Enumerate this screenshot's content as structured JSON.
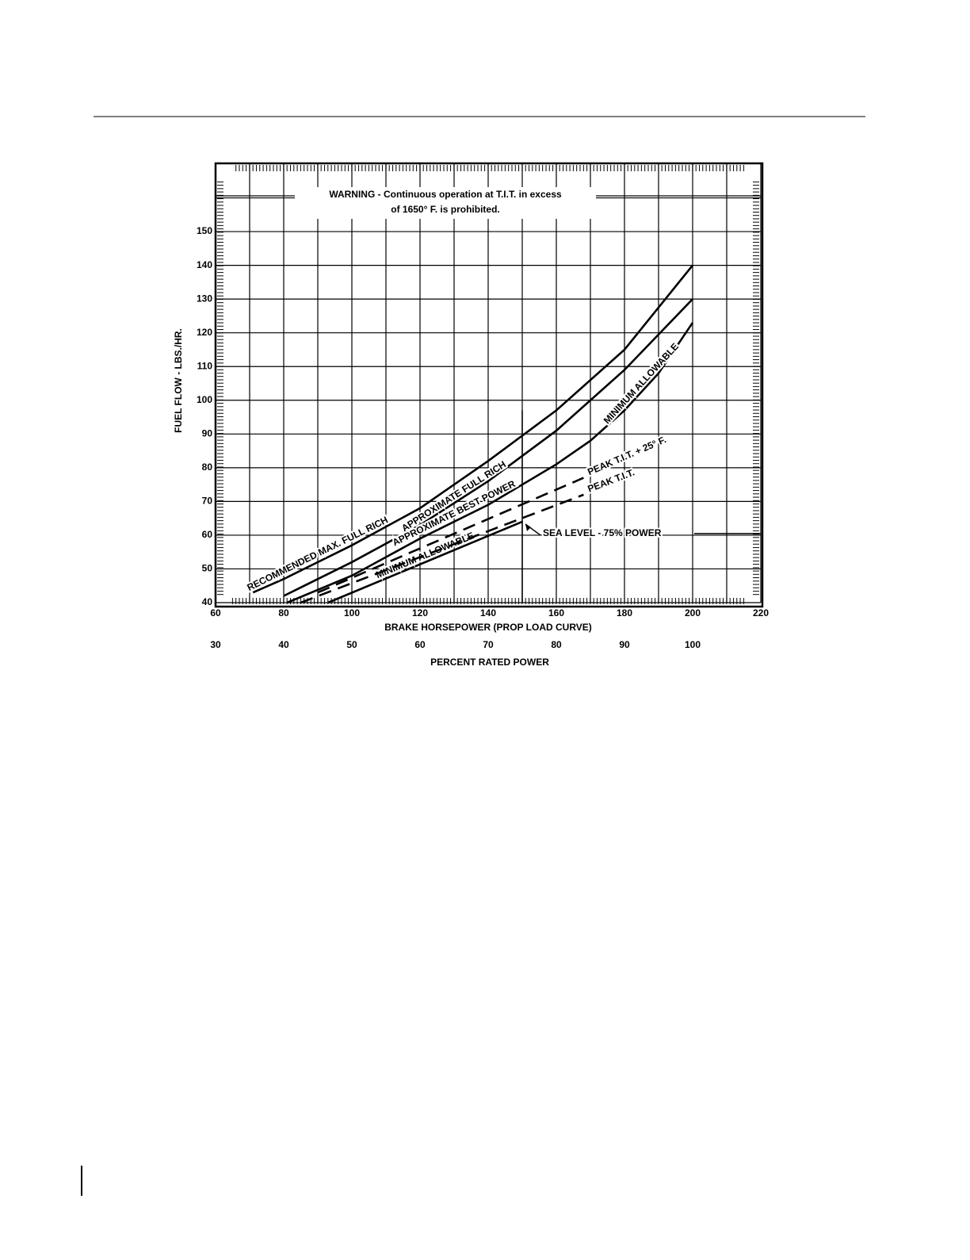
{
  "chart_data": {
    "type": "line",
    "ylabel": "FUEL FLOW - LBS./HR.",
    "xlabel": "BRAKE HORSEPOWER (PROP LOAD CURVE)",
    "x2label": "PERCENT RATED POWER",
    "xlim": [
      60,
      220
    ],
    "xticks": [
      60,
      80,
      100,
      120,
      140,
      160,
      180,
      200,
      220
    ],
    "x2lim": [
      30,
      110
    ],
    "x2ticks": [
      30,
      40,
      50,
      60,
      70,
      80,
      90,
      100
    ],
    "ylim": [
      40,
      170
    ],
    "yticks": [
      40,
      50,
      60,
      70,
      80,
      90,
      100,
      110,
      120,
      130,
      140,
      150
    ],
    "grid": true,
    "warning": [
      "WARNING - Continuous operation at T.I.T. in excess",
      "of 1650° F. is prohibited."
    ],
    "annotation": {
      "text": "SEA LEVEL - 75% POWER",
      "x": 150,
      "y": 60
    },
    "series": [
      {
        "name": "RECOMMENDED MAX. FULL RICH",
        "color": "#000",
        "dash": false,
        "x": [
          71,
          80,
          100,
          120,
          140,
          160,
          180,
          200
        ],
        "values": [
          43,
          47,
          57,
          68,
          82,
          97,
          115,
          140
        ]
      },
      {
        "name": "APPROXIMATE FULL RICH",
        "color": "#000",
        "dash": false,
        "x": [
          80,
          100,
          120,
          140,
          160,
          180,
          200
        ],
        "values": [
          42,
          52,
          63,
          76,
          91,
          109,
          130
        ]
      },
      {
        "name": "APPROXIMATE BEST POWER",
        "color": "#000",
        "dash": false,
        "x": [
          81,
          100,
          120,
          140,
          160,
          170
        ],
        "values": [
          40,
          48,
          59,
          69,
          81,
          88
        ]
      },
      {
        "name": "MINIMUM ALLOWABLE",
        "color": "#000",
        "dash": false,
        "x": [
          170,
          180,
          190,
          200
        ],
        "values": [
          88,
          97,
          108,
          123
        ]
      },
      {
        "name": "MINIMUM ALLOWABLE",
        "color": "#000",
        "dash": false,
        "x": [
          93,
          150
        ],
        "values": [
          40,
          64
        ]
      },
      {
        "name": "PEAK T.I.T. + 25° F.",
        "color": "#000",
        "dash": true,
        "x": [
          90,
          168
        ],
        "values": [
          43,
          77
        ]
      },
      {
        "name": "PEAK T.I.T.",
        "color": "#000",
        "dash": true,
        "x": [
          85,
          168
        ],
        "values": [
          40,
          72
        ]
      }
    ]
  }
}
